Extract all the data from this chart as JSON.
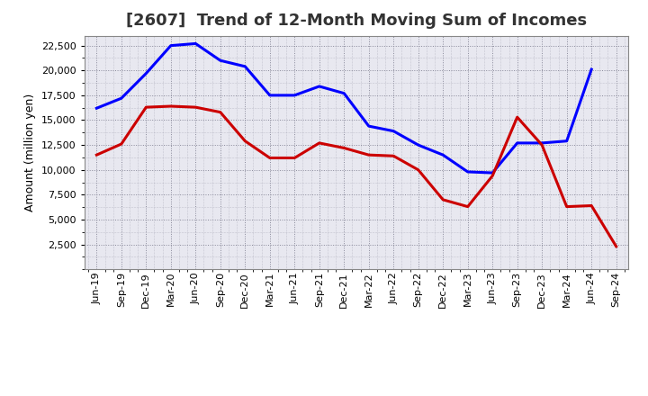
{
  "title": "[2607]  Trend of 12-Month Moving Sum of Incomes",
  "ylabel": "Amount (million yen)",
  "x_labels": [
    "Jun-19",
    "Sep-19",
    "Dec-19",
    "Mar-20",
    "Jun-20",
    "Sep-20",
    "Dec-20",
    "Mar-21",
    "Jun-21",
    "Sep-21",
    "Dec-21",
    "Mar-22",
    "Jun-22",
    "Sep-22",
    "Dec-22",
    "Mar-23",
    "Jun-23",
    "Sep-23",
    "Dec-23",
    "Mar-24",
    "Jun-24",
    "Sep-24"
  ],
  "ordinary_income": [
    16200,
    17200,
    19700,
    22500,
    22700,
    21000,
    20400,
    17500,
    17500,
    18400,
    17700,
    14400,
    13900,
    12500,
    11500,
    9800,
    9700,
    12700,
    12700,
    12900,
    20100,
    null
  ],
  "net_income": [
    11500,
    12600,
    16300,
    16400,
    16300,
    15800,
    12900,
    11200,
    11200,
    12700,
    12200,
    11500,
    11400,
    10000,
    7000,
    6300,
    9400,
    15300,
    12500,
    6300,
    6400,
    2300
  ],
  "ordinary_color": "#0000ff",
  "net_color": "#cc0000",
  "ylim_min": 0,
  "ylim_max": 23500,
  "yticks": [
    2500,
    5000,
    7500,
    10000,
    12500,
    15000,
    17500,
    20000,
    22500
  ],
  "bg_color": "#ffffff",
  "plot_bg_color": "#e8e8f0",
  "grid_color": "#888899",
  "title_fontsize": 13,
  "axis_label_fontsize": 9,
  "tick_fontsize": 8,
  "line_width": 2.2
}
